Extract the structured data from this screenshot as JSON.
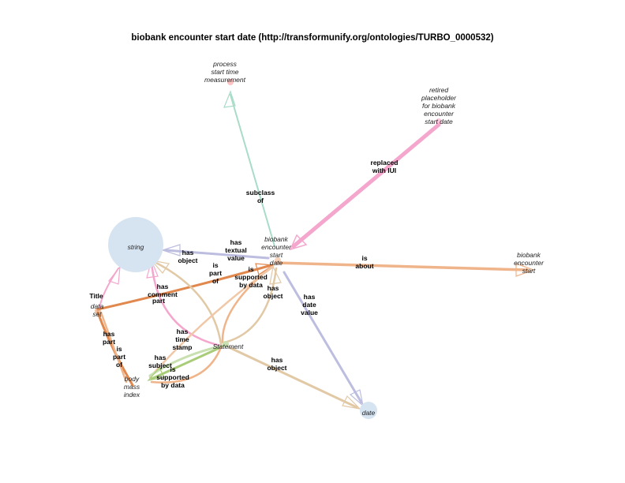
{
  "title": "biobank encounter start date (http://transformunify.org/ontologies/TURBO_0000532)",
  "colors": {
    "orange": "#f0b48a",
    "orange_dark": "#e0884e",
    "teal": "#a8dcc8",
    "pink": "#f4a6cc",
    "purple": "#bdbde0",
    "tan": "#e2c9a6",
    "green": "#c8e0b0",
    "green_dark": "#a8cc78",
    "node_fill": "#d6e4f2",
    "red_arrow": "#ff9090"
  },
  "nodes": [
    {
      "id": "process",
      "lines": [
        "process",
        "start time",
        "measurement"
      ]
    },
    {
      "id": "retired",
      "lines": [
        "retired",
        "placeholder",
        "for biobank",
        "encounter",
        "start date"
      ]
    },
    {
      "id": "string",
      "lines": [
        "string"
      ]
    },
    {
      "id": "bbesd",
      "lines": [
        "biobank",
        "encounter",
        "start",
        "date"
      ]
    },
    {
      "id": "bbes",
      "lines": [
        "biobank",
        "encounter",
        "start"
      ]
    },
    {
      "id": "dataset",
      "lines": [
        "data",
        "set"
      ]
    },
    {
      "id": "statement",
      "lines": [
        "Statement"
      ]
    },
    {
      "id": "bmi",
      "lines": [
        "body",
        "mass",
        "index"
      ]
    },
    {
      "id": "date",
      "lines": [
        "date"
      ]
    }
  ],
  "edge_labels": [
    {
      "id": "subclass",
      "lines": [
        "subclass",
        "of"
      ]
    },
    {
      "id": "replaced",
      "lines": [
        "replaced",
        "with IUI"
      ]
    },
    {
      "id": "is_about",
      "lines": [
        "is",
        "about"
      ]
    },
    {
      "id": "has_textual",
      "lines": [
        "has",
        "textual",
        "value"
      ]
    },
    {
      "id": "is_part_of_1",
      "lines": [
        "is",
        "part",
        "of"
      ]
    },
    {
      "id": "has_object_1",
      "lines": [
        "has",
        "object"
      ]
    },
    {
      "id": "is_supported_1",
      "lines": [
        "is",
        "supported",
        "by data"
      ]
    },
    {
      "id": "has_object_2",
      "lines": [
        "has",
        "object"
      ]
    },
    {
      "id": "has_date_value",
      "lines": [
        "has",
        "date",
        "value"
      ]
    },
    {
      "id": "has_comment",
      "lines": [
        "has",
        "comment"
      ]
    },
    {
      "id": "part",
      "lines": [
        "part"
      ]
    },
    {
      "id": "title_lbl",
      "lines": [
        "Title"
      ]
    },
    {
      "id": "has_part",
      "lines": [
        "has",
        "part"
      ]
    },
    {
      "id": "is_part_of_2",
      "lines": [
        "is",
        "part",
        "of"
      ]
    },
    {
      "id": "has_time_stamp",
      "lines": [
        "has",
        "time",
        "stamp"
      ]
    },
    {
      "id": "has_subject",
      "lines": [
        "has",
        "subject"
      ]
    },
    {
      "id": "is_supported_2",
      "lines": [
        "is",
        "supported",
        "by data"
      ]
    },
    {
      "id": "has_object_3",
      "lines": [
        "has",
        "object"
      ]
    }
  ]
}
